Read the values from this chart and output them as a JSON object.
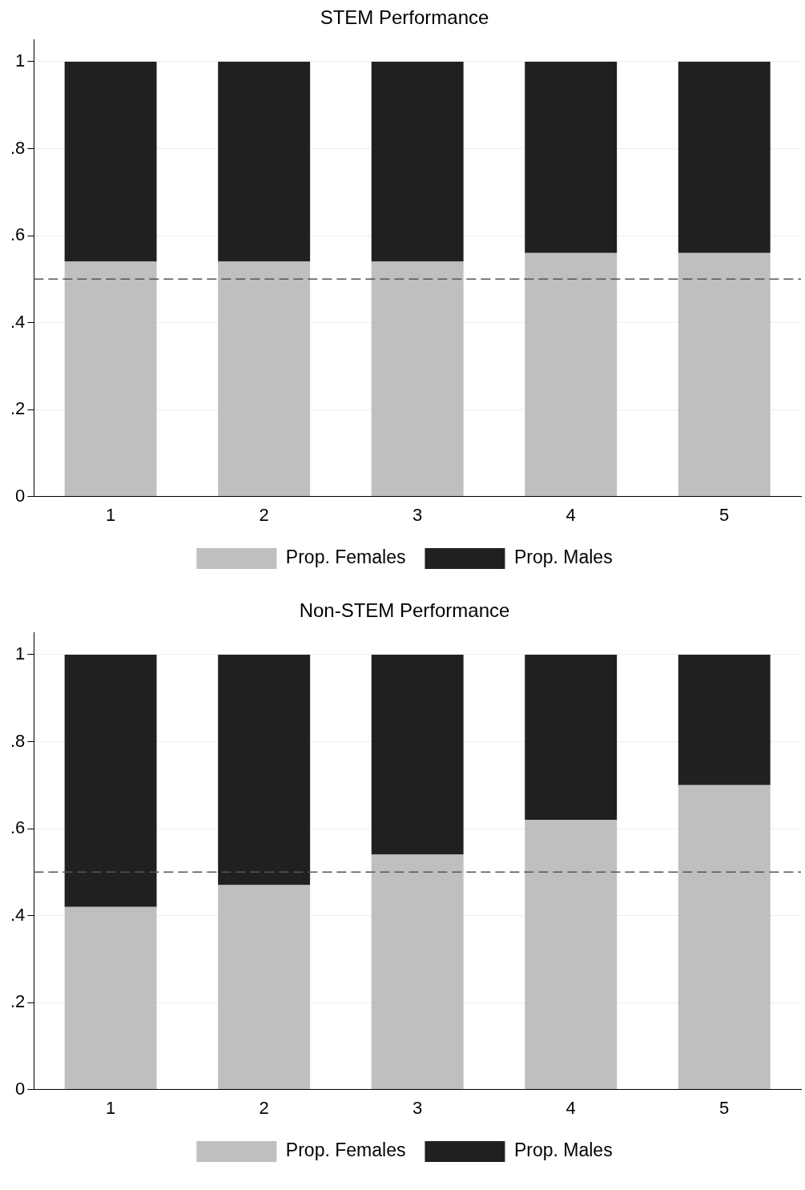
{
  "chart_data": [
    {
      "type": "bar",
      "title": "STEM Performance",
      "categories": [
        "1",
        "2",
        "3",
        "4",
        "5"
      ],
      "stacked": true,
      "series": [
        {
          "name": "Prop. Females",
          "color": "#bfbfbf",
          "values": [
            0.54,
            0.54,
            0.54,
            0.56,
            0.56
          ]
        },
        {
          "name": "Prop. Males",
          "color": "#202020",
          "values": [
            0.46,
            0.46,
            0.46,
            0.44,
            0.44
          ]
        }
      ],
      "ylim": [
        0,
        1.05
      ],
      "yticks": [
        {
          "value": 0,
          "label": "0"
        },
        {
          "value": 0.2,
          "label": ".2"
        },
        {
          "value": 0.4,
          "label": ".4"
        },
        {
          "value": 0.6,
          "label": ".6"
        },
        {
          "value": 0.8,
          "label": ".8"
        },
        {
          "value": 1,
          "label": "1"
        }
      ],
      "grid": "y",
      "legend": "bottom",
      "ref_lines": [
        {
          "axis": "y",
          "value": 0.5,
          "color": "#555555",
          "line_style": "dashed"
        }
      ]
    },
    {
      "type": "bar",
      "title": "Non-STEM Performance",
      "categories": [
        "1",
        "2",
        "3",
        "4",
        "5"
      ],
      "stacked": true,
      "series": [
        {
          "name": "Prop. Females",
          "color": "#bfbfbf",
          "values": [
            0.42,
            0.47,
            0.54,
            0.62,
            0.7
          ]
        },
        {
          "name": "Prop. Males",
          "color": "#202020",
          "values": [
            0.58,
            0.53,
            0.46,
            0.38,
            0.3
          ]
        }
      ],
      "ylim": [
        0,
        1.05
      ],
      "yticks": [
        {
          "value": 0,
          "label": "0"
        },
        {
          "value": 0.2,
          "label": ".2"
        },
        {
          "value": 0.4,
          "label": ".4"
        },
        {
          "value": 0.6,
          "label": ".6"
        },
        {
          "value": 0.8,
          "label": ".8"
        },
        {
          "value": 1,
          "label": "1"
        }
      ],
      "grid": "y",
      "legend": "bottom",
      "ref_lines": [
        {
          "axis": "y",
          "value": 0.5,
          "color": "#555555",
          "line_style": "dashed"
        }
      ]
    }
  ]
}
